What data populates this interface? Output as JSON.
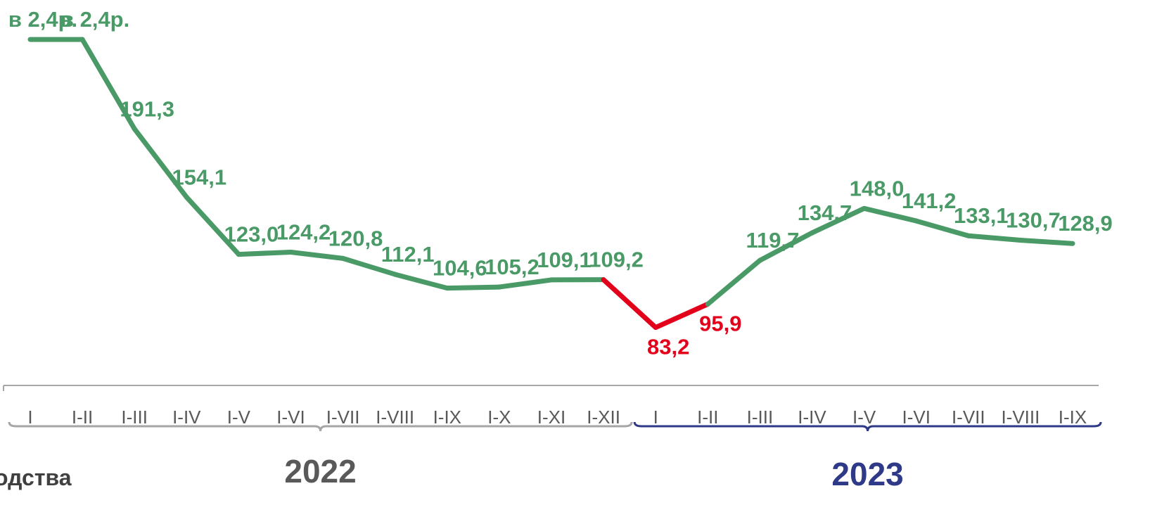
{
  "chart_data": {
    "type": "line",
    "groups": [
      {
        "label": "2022",
        "color": "#a6a6a6",
        "label_color": "#595959",
        "categories": [
          "I",
          "I-II",
          "I-III",
          "I-IV",
          "I-V",
          "I-VI",
          "I-VII",
          "I-VIII",
          "I-IX",
          "I-X",
          "I-XI",
          "I-XII"
        ]
      },
      {
        "label": "2023",
        "color": "#2e3a87",
        "label_color": "#2e3a87",
        "categories": [
          "I",
          "I-II",
          "I-III",
          "I-IV",
          "I-V",
          "I-VI",
          "I-VII",
          "I-VIII",
          "I-IX"
        ]
      }
    ],
    "values": [
      240,
      240,
      191.3,
      154.1,
      123.0,
      124.2,
      120.8,
      112.1,
      104.6,
      105.2,
      109.1,
      109.2,
      83.2,
      95.9,
      119.7,
      134.7,
      148.0,
      141.2,
      133.1,
      130.7,
      128.9
    ],
    "value_labels": [
      "в 2,4р.",
      "в 2,4р.",
      "191,3",
      "154,1",
      "123,0",
      "124,2",
      "120,8",
      "112,1",
      "104,6",
      "105,2",
      "109,1",
      "109,2",
      "83,2",
      "95,9",
      "119,7",
      "134,7",
      "148,0",
      "141,2",
      "133,1",
      "130,7",
      "128,9"
    ],
    "point_colors": [
      "#4a9a67",
      "#4a9a67",
      "#4a9a67",
      "#4a9a67",
      "#4a9a67",
      "#4a9a67",
      "#4a9a67",
      "#4a9a67",
      "#4a9a67",
      "#4a9a67",
      "#4a9a67",
      "#4a9a67",
      "#e3001b",
      "#e3001b",
      "#4a9a67",
      "#4a9a67",
      "#4a9a67",
      "#4a9a67",
      "#4a9a67",
      "#4a9a67",
      "#4a9a67"
    ],
    "ylim": [
      70,
      250
    ],
    "side_text": "одства"
  }
}
